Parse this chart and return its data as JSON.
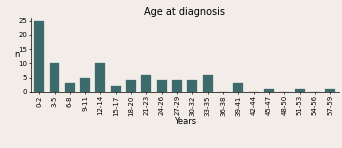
{
  "title": "Age at diagnosis",
  "xlabel": "Years",
  "ylabel": "n",
  "categories": [
    "0-2",
    "3-5",
    "6-8",
    "9-11",
    "12-14",
    "15-17",
    "18-20",
    "21-23",
    "24-26",
    "27-29",
    "30-32",
    "33-35",
    "36-38",
    "39-41",
    "42-44",
    "45-47",
    "48-50",
    "51-53",
    "54-56",
    "57-59"
  ],
  "values": [
    25,
    10,
    3,
    5,
    10,
    2,
    4,
    6,
    4,
    4,
    4,
    6,
    0,
    3,
    0,
    1,
    0,
    1,
    0,
    1
  ],
  "bar_color": "#3d6b6b",
  "ylim": [
    0,
    26
  ],
  "yticks": [
    0,
    5,
    10,
    15,
    20,
    25
  ],
  "bar_width": 0.65,
  "title_fontsize": 7,
  "axis_label_fontsize": 6,
  "tick_fontsize": 5,
  "background_color": "#f2ede8"
}
